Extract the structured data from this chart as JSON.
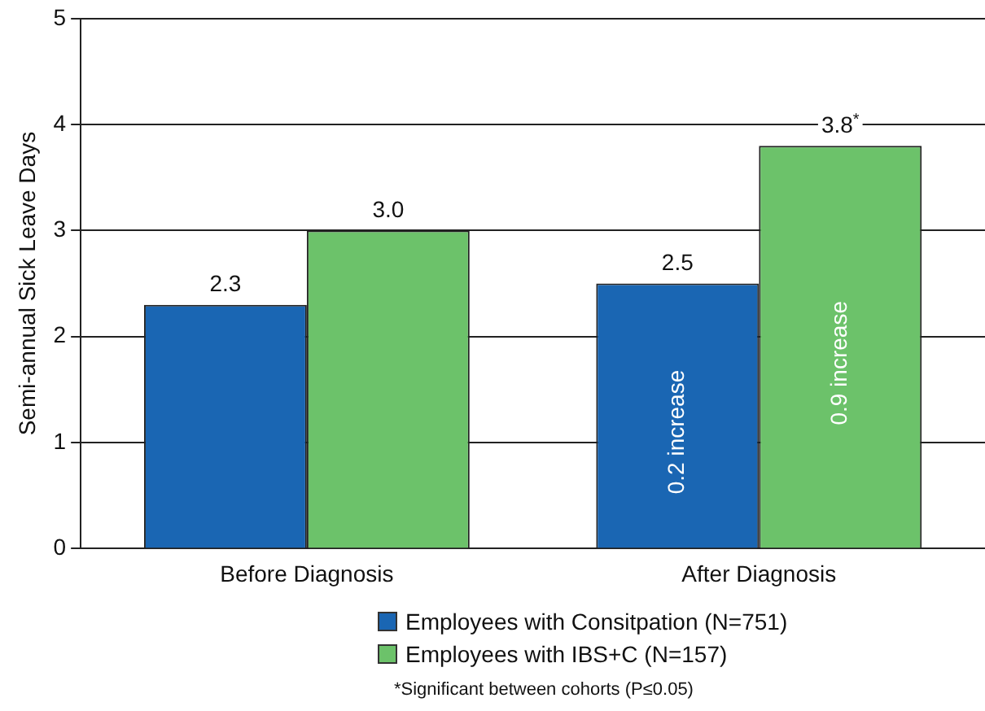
{
  "chart_data": {
    "type": "bar",
    "ylabel": "Semi-annual Sick Leave Days",
    "categories": [
      "Before Diagnosis",
      "After Diagnosis"
    ],
    "series": [
      {
        "name": "Employees with Consitpation (N=751)",
        "color": "#1a66b3",
        "values": [
          2.3,
          2.5
        ],
        "value_labels": [
          "2.3",
          "2.5"
        ]
      },
      {
        "name": "Employees with IBS+C (N=157)",
        "color": "#6cc26a",
        "values": [
          3.0,
          3.8
        ],
        "value_labels": [
          "3.0",
          "3.8$^{*}$"
        ]
      }
    ],
    "ylim": [
      0,
      5
    ],
    "yticks": [
      0,
      1,
      2,
      3,
      4,
      5
    ],
    "grid": "y",
    "legend": "bottom",
    "annotations": [
      "0.2 increase",
      "0.9 increase",
      "*Significant between cohorts (P≤0.05)"
    ]
  }
}
